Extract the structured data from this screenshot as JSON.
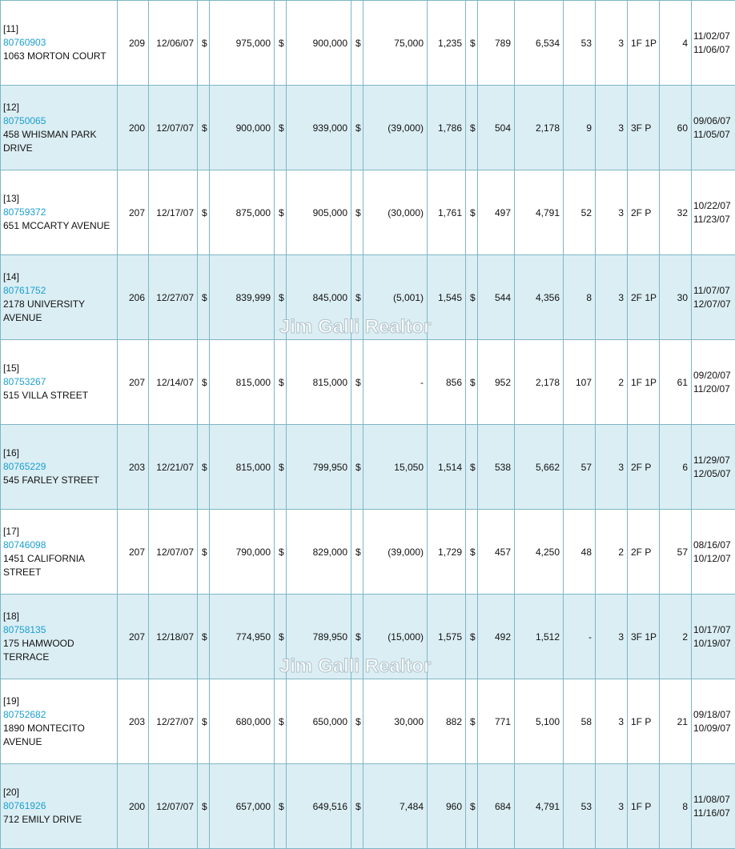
{
  "watermark": "Jim Galli Realtor",
  "currency_symbol": "$",
  "rows": [
    {
      "idx": "[11]",
      "mls": "80760903",
      "address": "1063 MORTON COURT",
      "days": "209",
      "close_date": "12/06/07",
      "sale_price": "975,000",
      "list_price": "900,000",
      "diff": "75,000",
      "sqft": "1,235",
      "ppsf": "789",
      "lot": "6,534",
      "age": "53",
      "beds": "3",
      "baths": "1F 1P",
      "dom": "4",
      "date1": "11/02/07",
      "date2": "11/06/07"
    },
    {
      "idx": "[12]",
      "mls": "80750065",
      "address": "458 WHISMAN PARK DRIVE",
      "days": "200",
      "close_date": "12/07/07",
      "sale_price": "900,000",
      "list_price": "939,000",
      "diff": "(39,000)",
      "sqft": "1,786",
      "ppsf": "504",
      "lot": "2,178",
      "age": "9",
      "beds": "3",
      "baths": "3F P",
      "dom": "60",
      "date1": "09/06/07",
      "date2": "11/05/07"
    },
    {
      "idx": "[13]",
      "mls": "80759372",
      "address": "651 MCCARTY AVENUE",
      "days": "207",
      "close_date": "12/17/07",
      "sale_price": "875,000",
      "list_price": "905,000",
      "diff": "(30,000)",
      "sqft": "1,761",
      "ppsf": "497",
      "lot": "4,791",
      "age": "52",
      "beds": "3",
      "baths": "2F P",
      "dom": "32",
      "date1": "10/22/07",
      "date2": "11/23/07"
    },
    {
      "idx": "[14]",
      "mls": "80761752",
      "address": "2178 UNIVERSITY AVENUE",
      "days": "206",
      "close_date": "12/27/07",
      "sale_price": "839,999",
      "list_price": "845,000",
      "diff": "(5,001)",
      "sqft": "1,545",
      "ppsf": "544",
      "lot": "4,356",
      "age": "8",
      "beds": "3",
      "baths": "2F 1P",
      "dom": "30",
      "date1": "11/07/07",
      "date2": "12/07/07"
    },
    {
      "idx": "[15]",
      "mls": "80753267",
      "address": "515 VILLA STREET",
      "days": "207",
      "close_date": "12/14/07",
      "sale_price": "815,000",
      "list_price": "815,000",
      "diff": "-",
      "sqft": "856",
      "ppsf": "952",
      "lot": "2,178",
      "age": "107",
      "beds": "2",
      "baths": "1F 1P",
      "dom": "61",
      "date1": "09/20/07",
      "date2": "11/20/07"
    },
    {
      "idx": "[16]",
      "mls": "80765229",
      "address": "545 FARLEY STREET",
      "days": "203",
      "close_date": "12/21/07",
      "sale_price": "815,000",
      "list_price": "799,950",
      "diff": "15,050",
      "sqft": "1,514",
      "ppsf": "538",
      "lot": "5,662",
      "age": "57",
      "beds": "3",
      "baths": "2F P",
      "dom": "6",
      "date1": "11/29/07",
      "date2": "12/05/07"
    },
    {
      "idx": "[17]",
      "mls": "80746098",
      "address": "1451 CALIFORNIA STREET",
      "days": "207",
      "close_date": "12/07/07",
      "sale_price": "790,000",
      "list_price": "829,000",
      "diff": "(39,000)",
      "sqft": "1,729",
      "ppsf": "457",
      "lot": "4,250",
      "age": "48",
      "beds": "2",
      "baths": "2F P",
      "dom": "57",
      "date1": "08/16/07",
      "date2": "10/12/07"
    },
    {
      "idx": "[18]",
      "mls": "80758135",
      "address": "175 HAMWOOD TERRACE",
      "days": "207",
      "close_date": "12/18/07",
      "sale_price": "774,950",
      "list_price": "789,950",
      "diff": "(15,000)",
      "sqft": "1,575",
      "ppsf": "492",
      "lot": "1,512",
      "age": "-",
      "beds": "3",
      "baths": "3F 1P",
      "dom": "2",
      "date1": "10/17/07",
      "date2": "10/19/07"
    },
    {
      "idx": "[19]",
      "mls": "80752682",
      "address": "1890 MONTECITO AVENUE",
      "days": "203",
      "close_date": "12/27/07",
      "sale_price": "680,000",
      "list_price": "650,000",
      "diff": "30,000",
      "sqft": "882",
      "ppsf": "771",
      "lot": "5,100",
      "age": "58",
      "beds": "3",
      "baths": "1F P",
      "dom": "21",
      "date1": "09/18/07",
      "date2": "10/09/07"
    },
    {
      "idx": "[20]",
      "mls": "80761926",
      "address": "712 EMILY DRIVE",
      "days": "200",
      "close_date": "12/07/07",
      "sale_price": "657,000",
      "list_price": "649,516",
      "diff": "7,484",
      "sqft": "960",
      "ppsf": "684",
      "lot": "4,791",
      "age": "53",
      "beds": "3",
      "baths": "1F P",
      "dom": "8",
      "date1": "11/08/07",
      "date2": "11/16/07"
    }
  ]
}
